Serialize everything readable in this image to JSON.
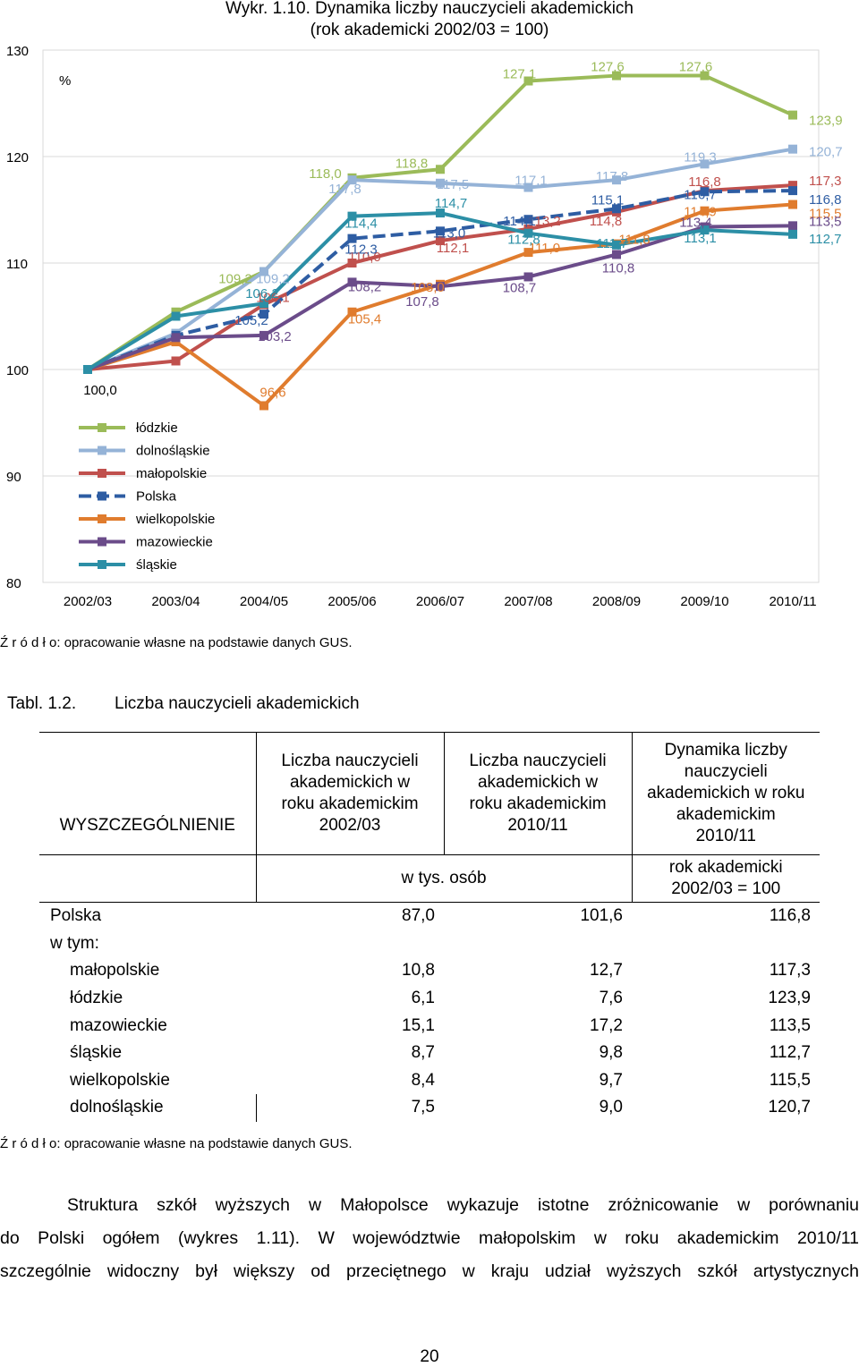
{
  "figure": {
    "title_line1": "Wykr. 1.10. Dynamika liczby nauczycieli akademickich",
    "title_line2": "(rok akademicki 2002/03 = 100)",
    "unit": "%",
    "source": "Ź r ó d ł o: opracowanie własne na podstawie danych GUS."
  },
  "chart_data": {
    "type": "line",
    "title": "Wykr. 1.10. Dynamika liczby nauczycieli akademickich (rok akademicki 2002/03 = 100)",
    "ylabel": "%",
    "ylim": [
      80,
      130
    ],
    "yticks": [
      "80",
      "90",
      "100",
      "110",
      "120",
      "130"
    ],
    "categories": [
      "2002/03",
      "2003/04",
      "2004/05",
      "2005/06",
      "2006/07",
      "2007/08",
      "2008/09",
      "2009/10",
      "2010/11"
    ],
    "grid": "horizontal",
    "legend_position": "inside-left",
    "series": [
      {
        "name": "łódzkie",
        "color": "#9BBB59",
        "dash": false,
        "values": [
          100.0,
          105.4,
          109.2,
          118.0,
          118.8,
          127.1,
          127.6,
          127.6,
          123.9
        ],
        "labels": [
          "",
          "",
          "109,2",
          "118,0",
          "118,8",
          "127,1",
          "127,6",
          "127,6",
          "123,9"
        ]
      },
      {
        "name": "dolnośląskie",
        "color": "#95B3D7",
        "dash": false,
        "values": [
          100.0,
          103.4,
          109.2,
          117.8,
          117.5,
          117.1,
          117.8,
          119.3,
          120.7
        ],
        "labels": [
          "",
          "",
          "109,2",
          "117,8",
          "117,5",
          "117,1",
          "117,8",
          "119,3",
          "120,7"
        ]
      },
      {
        "name": "małopolskie",
        "color": "#C0504D",
        "dash": false,
        "values": [
          100.0,
          100.8,
          106.1,
          110.0,
          112.1,
          113.2,
          114.8,
          116.8,
          117.3
        ],
        "labels": [
          "",
          "",
          "106,1",
          "110,0",
          "112,1",
          "113,2",
          "114,8",
          "116,8",
          "117,3"
        ]
      },
      {
        "name": "Polska",
        "color": "#2E5DA3",
        "dash": true,
        "values": [
          100.0,
          103.2,
          105.2,
          112.3,
          113.0,
          114.1,
          115.1,
          116.7,
          116.8
        ],
        "labels": [
          "",
          "",
          "105,2",
          "112,3",
          "113,0",
          "114,1",
          "115,1",
          "116,7",
          "116,8"
        ]
      },
      {
        "name": "wielkopolskie",
        "color": "#E07C2E",
        "dash": false,
        "values": [
          100.0,
          102.6,
          96.6,
          105.4,
          108.0,
          111.0,
          111.8,
          114.9,
          115.5
        ],
        "labels": [
          "100,0",
          "",
          "96,6",
          "105,4",
          "108,0",
          "111,0",
          "111,8",
          "114,9",
          "115,5"
        ]
      },
      {
        "name": "mazowieckie",
        "color": "#6B4C8A",
        "dash": false,
        "values": [
          100.0,
          103.0,
          103.2,
          108.2,
          107.8,
          108.7,
          110.8,
          113.4,
          113.5
        ],
        "labels": [
          "",
          "",
          "103,2",
          "108,2",
          "107,8",
          "108,7",
          "110,8",
          "113,4",
          "113,5"
        ]
      },
      {
        "name": "śląskie",
        "color": "#2C8FA6",
        "dash": false,
        "values": [
          100.0,
          105.0,
          106.2,
          114.4,
          114.7,
          112.8,
          111.7,
          113.1,
          112.7
        ],
        "labels": [
          "",
          "",
          "106,2",
          "114,4",
          "114,7",
          "112,8",
          "111,7",
          "113,1",
          "112,7"
        ]
      }
    ]
  },
  "table": {
    "caption_label": "Tabl. 1.2.",
    "caption_title": "Liczba nauczycieli akademickich",
    "header_col1": "WYSZCZEGÓLNIENIE",
    "header_col2": [
      "Liczba nauczycieli",
      "akademickich w",
      "roku akademickim",
      "2002/03"
    ],
    "header_col3": [
      "Liczba nauczycieli",
      "akademickich w",
      "roku akademickim",
      "2010/11"
    ],
    "header_col4": [
      "Dynamika liczby",
      "nauczycieli",
      "akademickich w roku",
      "akademickim",
      "2010/11"
    ],
    "unit_label": "w tys. osób",
    "index_label": [
      "rok akademicki",
      "2002/03 = 100"
    ],
    "row_polska": {
      "name": "Polska",
      "v1": "87,0",
      "v2": "101,6",
      "v3": "116,8"
    },
    "w_tym": "w tym:",
    "rows": [
      {
        "name": "małopolskie",
        "v1": "10,8",
        "v2": "12,7",
        "v3": "117,3"
      },
      {
        "name": "łódzkie",
        "v1": "6,1",
        "v2": "7,6",
        "v3": "123,9"
      },
      {
        "name": "mazowieckie",
        "v1": "15,1",
        "v2": "17,2",
        "v3": "113,5"
      },
      {
        "name": "śląskie",
        "v1": "8,7",
        "v2": "9,8",
        "v3": "112,7"
      },
      {
        "name": "wielkopolskie",
        "v1": "8,4",
        "v2": "9,7",
        "v3": "115,5"
      },
      {
        "name": "dolnośląskie",
        "v1": "7,5",
        "v2": "9,0",
        "v3": "120,7"
      }
    ],
    "source": "Ź r ó d ł o: opracowanie własne na podstawie danych GUS."
  },
  "paragraph": {
    "line1": "Struktura szkół wyższych w Małopolsce wykazuje istotne zróżnicowanie w porównaniu",
    "line2": "do Polski ogółem (wykres 1.11). W województwie małopolskim w roku akademickim 2010/11",
    "line3": "szczególnie widoczny był większy od przeciętnego w kraju udział wyższych szkół artystycznych"
  },
  "page_number": "20"
}
